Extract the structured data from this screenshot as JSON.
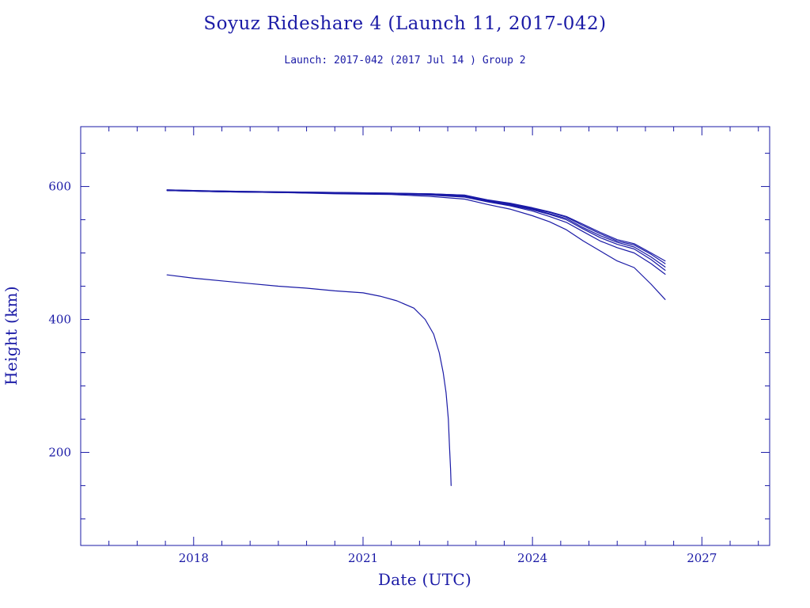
{
  "chart_data": {
    "type": "line",
    "title": "Soyuz Rideshare 4 (Launch 11, 2017-042)",
    "subtitle": "Launch: 2017-042  (2017 Jul 14 )  Group 2",
    "xlabel": "Date (UTC)",
    "ylabel": "Height (km)",
    "x_unit": "year (decimal)",
    "xlim": [
      2016.0,
      2028.2
    ],
    "ylim": [
      60,
      690
    ],
    "xticks_major": [
      2018,
      2021,
      2024,
      2027
    ],
    "xtick_labels": [
      "2018",
      "2021",
      "2024",
      "2027"
    ],
    "xticks_minor_step": 0.5,
    "yticks_major": [
      200,
      400,
      600
    ],
    "ytick_labels": [
      "200",
      "400",
      "600"
    ],
    "yticks_minor_step": 50,
    "grid": false,
    "legend": "none",
    "line_color": "#1a1aa6",
    "series": [
      {
        "x": [
          2017.53,
          2018.0,
          2018.5,
          2019.0,
          2019.5,
          2020.0,
          2020.5,
          2021.0,
          2021.3,
          2021.6,
          2021.9,
          2022.1,
          2022.25,
          2022.35,
          2022.42,
          2022.47,
          2022.51,
          2022.53,
          2022.55,
          2022.56
        ],
        "y": [
          467,
          462,
          458,
          454,
          450,
          447,
          443,
          440,
          435,
          428,
          417,
          400,
          378,
          350,
          320,
          290,
          250,
          210,
          175,
          150
        ]
      },
      {
        "x": [
          2017.53,
          2018.5,
          2019.5,
          2020.5,
          2021.5,
          2022.2,
          2022.8,
          2023.2,
          2023.6,
          2024.0,
          2024.3,
          2024.6,
          2024.9,
          2025.2,
          2025.5,
          2025.8,
          2026.1,
          2026.35
        ],
        "y": [
          594,
          592,
          591,
          589,
          588,
          585,
          581,
          573,
          566,
          556,
          547,
          535,
          518,
          503,
          488,
          478,
          453,
          430
        ]
      },
      {
        "x": [
          2017.53,
          2018.5,
          2019.5,
          2020.5,
          2021.5,
          2022.2,
          2022.8,
          2023.2,
          2023.6,
          2024.0,
          2024.3,
          2024.6,
          2024.9,
          2025.2,
          2025.5,
          2025.8,
          2026.1,
          2026.35
        ],
        "y": [
          594,
          592,
          591,
          590,
          589,
          587,
          584,
          577,
          571,
          563,
          555,
          546,
          532,
          518,
          508,
          500,
          484,
          468
        ]
      },
      {
        "x": [
          2017.53,
          2018.5,
          2019.5,
          2020.5,
          2021.5,
          2022.2,
          2022.8,
          2023.2,
          2023.6,
          2024.0,
          2024.3,
          2024.6,
          2024.9,
          2025.2,
          2025.5,
          2025.8,
          2026.1,
          2026.35
        ],
        "y": [
          594,
          592,
          591,
          590,
          589,
          588,
          585,
          578,
          572,
          565,
          558,
          550,
          536,
          523,
          513,
          506,
          490,
          474
        ]
      },
      {
        "x": [
          2017.53,
          2018.5,
          2019.5,
          2020.5,
          2021.5,
          2022.2,
          2022.8,
          2023.2,
          2023.6,
          2024.0,
          2024.3,
          2024.6,
          2024.9,
          2025.2,
          2025.5,
          2025.8,
          2026.1,
          2026.35
        ],
        "y": [
          594,
          593,
          591,
          590,
          589,
          588,
          586,
          578,
          573,
          566,
          559,
          552,
          538,
          526,
          516,
          509,
          494,
          479
        ]
      },
      {
        "x": [
          2017.53,
          2018.5,
          2019.5,
          2020.5,
          2021.5,
          2022.2,
          2022.8,
          2023.2,
          2023.6,
          2024.0,
          2024.3,
          2024.6,
          2024.9,
          2025.2,
          2025.5,
          2025.8,
          2026.1,
          2026.35
        ],
        "y": [
          595,
          593,
          592,
          591,
          590,
          589,
          587,
          579,
          574,
          567,
          561,
          554,
          541,
          529,
          518,
          512,
          498,
          484
        ]
      },
      {
        "x": [
          2017.53,
          2018.5,
          2019.5,
          2020.5,
          2021.5,
          2022.2,
          2022.8,
          2023.2,
          2023.6,
          2024.0,
          2024.3,
          2024.6,
          2024.9,
          2025.2,
          2025.5,
          2025.8,
          2026.1,
          2026.35
        ],
        "y": [
          595,
          593,
          592,
          591,
          590,
          589,
          587,
          580,
          575,
          568,
          562,
          555,
          543,
          531,
          520,
          514,
          500,
          488
        ]
      }
    ]
  }
}
